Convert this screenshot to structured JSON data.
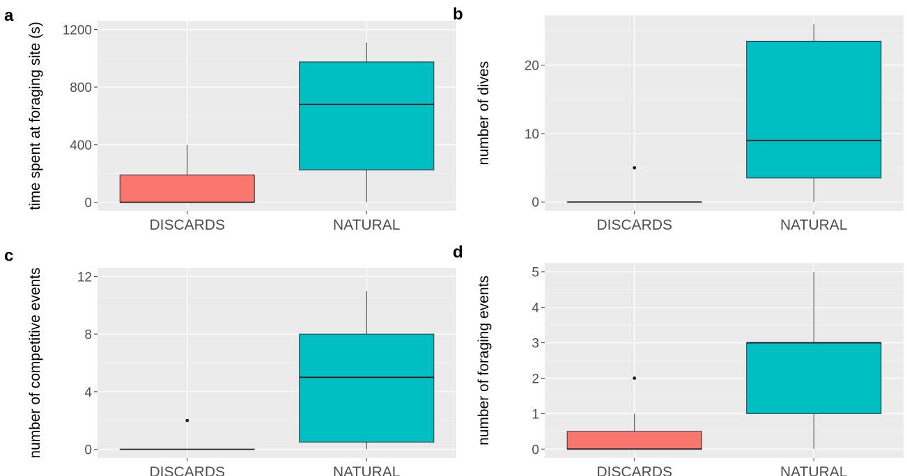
{
  "chart_data": [
    {
      "panel": "a",
      "type": "box",
      "ylabel": "time spent at foraging site (s)",
      "xlabel": "",
      "categories": [
        "DISCARDS",
        "NATURAL"
      ],
      "yticks": [
        0,
        400,
        800,
        1200
      ],
      "ylim": [
        -60,
        1260
      ],
      "grid": true,
      "boxes": [
        {
          "category": "DISCARDS",
          "color": "#F8766D",
          "min": 0,
          "q1": 0,
          "median": 0,
          "q3": 190,
          "max": 400,
          "outliers": []
        },
        {
          "category": "NATURAL",
          "color": "#00BFC4",
          "min": 0,
          "q1": 225,
          "median": 680,
          "q3": 975,
          "max": 1110,
          "outliers": []
        }
      ]
    },
    {
      "panel": "b",
      "type": "box",
      "ylabel": "number of dives",
      "xlabel": "",
      "categories": [
        "DISCARDS",
        "NATURAL"
      ],
      "yticks": [
        0,
        10,
        20
      ],
      "ylim": [
        -1.3,
        27.3
      ],
      "grid": true,
      "boxes": [
        {
          "category": "DISCARDS",
          "color": "#F8766D",
          "min": 0,
          "q1": 0,
          "median": 0,
          "q3": 0,
          "max": 0,
          "outliers": [
            5
          ]
        },
        {
          "category": "NATURAL",
          "color": "#00BFC4",
          "min": 0,
          "q1": 3.5,
          "median": 9,
          "q3": 23.5,
          "max": 26,
          "outliers": []
        }
      ]
    },
    {
      "panel": "c",
      "type": "box",
      "ylabel": "number of competitive events",
      "xlabel": "",
      "categories": [
        "DISCARDS",
        "NATURAL"
      ],
      "yticks": [
        0,
        4,
        8,
        12
      ],
      "ylim": [
        -0.6,
        12.6
      ],
      "grid": true,
      "boxes": [
        {
          "category": "DISCARDS",
          "color": "#F8766D",
          "min": 0,
          "q1": 0,
          "median": 0,
          "q3": 0,
          "max": 0,
          "outliers": [
            2
          ]
        },
        {
          "category": "NATURAL",
          "color": "#00BFC4",
          "min": 0,
          "q1": 0.5,
          "median": 5,
          "q3": 8,
          "max": 11,
          "outliers": []
        }
      ]
    },
    {
      "panel": "d",
      "type": "box",
      "ylabel": "number of foraging events",
      "xlabel": "",
      "categories": [
        "DISCARDS",
        "NATURAL"
      ],
      "yticks": [
        0,
        1,
        2,
        3,
        4,
        5
      ],
      "ylim": [
        -0.25,
        5.25
      ],
      "grid": true,
      "boxes": [
        {
          "category": "DISCARDS",
          "color": "#F8766D",
          "min": 0,
          "q1": 0,
          "median": 0,
          "q3": 0.5,
          "max": 1,
          "outliers": [
            2
          ]
        },
        {
          "category": "NATURAL",
          "color": "#00BFC4",
          "min": 0,
          "q1": 1,
          "median": 3,
          "q3": 3,
          "max": 5,
          "outliers": []
        }
      ]
    }
  ]
}
